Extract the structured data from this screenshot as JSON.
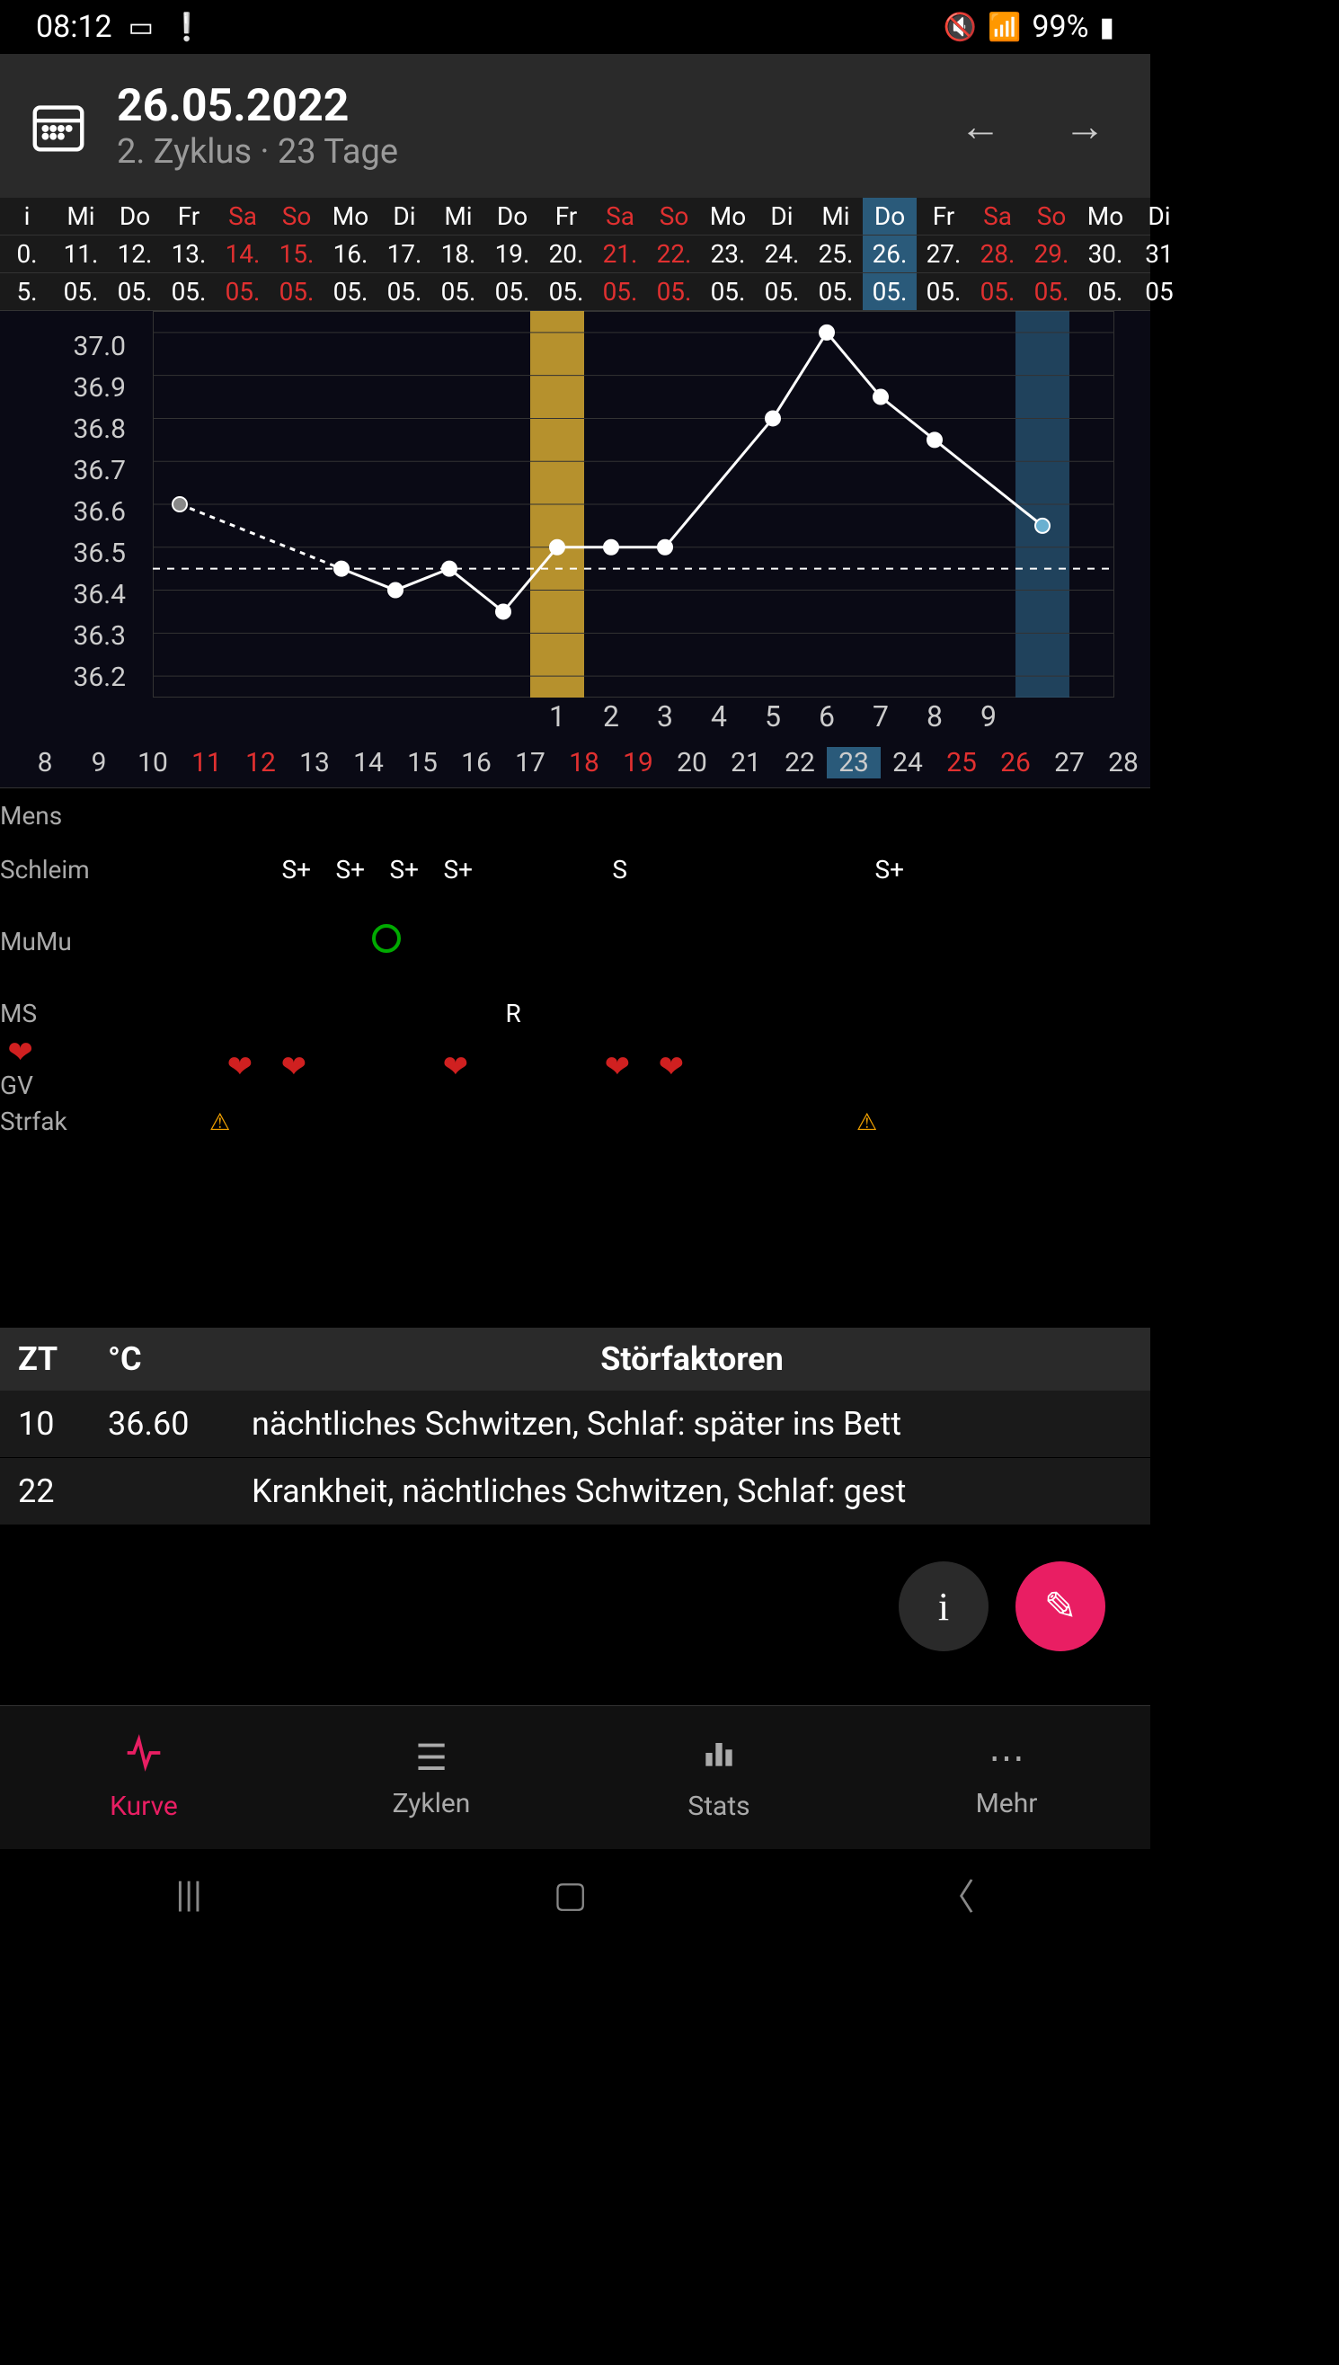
{
  "status": {
    "time": "08:12",
    "battery": "99%"
  },
  "header": {
    "date": "26.05.2022",
    "sub": "2. Zyklus · 23 Tage"
  },
  "colors": {
    "accent": "#e91e63",
    "red_text": "#e03030",
    "blue_bg": "#2a5a7a",
    "ovu_bg": "#c9a030",
    "red_bg": "#9a1818",
    "grid": "#333333",
    "bg": "#000000",
    "panel": "#2a2a2a"
  },
  "cal": {
    "weekdays": [
      "i",
      "Mi",
      "Do",
      "Fr",
      "Sa",
      "So",
      "Mo",
      "Di",
      "Mi",
      "Do",
      "Fr",
      "Sa",
      "So",
      "Mo",
      "Di",
      "Mi",
      "Do",
      "Fr",
      "Sa",
      "So",
      "Mo",
      "Di"
    ],
    "red_wd": [
      4,
      5,
      11,
      12,
      18,
      19
    ],
    "day_nums": [
      "0.",
      "11.",
      "12.",
      "13.",
      "14.",
      "15.",
      "16.",
      "17.",
      "18.",
      "19.",
      "20.",
      "21.",
      "22.",
      "23.",
      "24.",
      "25.",
      "26.",
      "27.",
      "28.",
      "29.",
      "30.",
      "31"
    ],
    "red_dn": [
      4,
      5,
      11,
      12,
      18,
      19
    ],
    "months": [
      "5.",
      "05.",
      "05.",
      "05.",
      "05.",
      "05.",
      "05.",
      "05.",
      "05.",
      "05.",
      "05.",
      "05.",
      "05.",
      "05.",
      "05.",
      "05.",
      "05.",
      "05.",
      "05.",
      "05.",
      "05.",
      "05"
    ],
    "red_mn": [
      4,
      5,
      11,
      12,
      18,
      19
    ],
    "today_idx": 16
  },
  "chart": {
    "y_labels": [
      "37.0",
      "36.9",
      "36.8",
      "36.7",
      "36.6",
      "36.5",
      "36.4",
      "36.3",
      "36.2"
    ],
    "ylim": [
      36.15,
      37.05
    ],
    "coverline": 36.45,
    "ovu_col_idx": 7,
    "today_col_idx": 16,
    "red_col_start": 21,
    "points": [
      {
        "x": 0,
        "y": 36.6,
        "dashed": true,
        "grey": true
      },
      {
        "x": 3,
        "y": 36.45
      },
      {
        "x": 4,
        "y": 36.4
      },
      {
        "x": 5,
        "y": 36.45
      },
      {
        "x": 6,
        "y": 36.35
      },
      {
        "x": 7,
        "y": 36.5
      },
      {
        "x": 8,
        "y": 36.5
      },
      {
        "x": 9,
        "y": 36.5
      },
      {
        "x": 11,
        "y": 36.8
      },
      {
        "x": 12,
        "y": 37.0
      },
      {
        "x": 13,
        "y": 36.85
      },
      {
        "x": 14,
        "y": 36.75
      },
      {
        "x": 16,
        "y": 36.55,
        "blue": true
      }
    ],
    "phase_nums": [
      "",
      "",
      "",
      "",
      "",
      "",
      "",
      "1",
      "2",
      "3",
      "4",
      "5",
      "6",
      "7",
      "8",
      "9",
      "",
      "",
      "",
      "",
      "",
      ""
    ],
    "cycle_days": [
      "8",
      "9",
      "10",
      "11",
      "12",
      "13",
      "14",
      "15",
      "16",
      "17",
      "18",
      "19",
      "20",
      "21",
      "22",
      "23",
      "24",
      "25",
      "26",
      "27",
      "28"
    ],
    "cycle_red": [
      3,
      4,
      10,
      11,
      17,
      18
    ],
    "cycle_today": 15
  },
  "sym": {
    "rows": [
      {
        "label": "Mens",
        "cells": []
      },
      {
        "label": "Schleim",
        "cells": [
          {
            "i": 3,
            "v": "S+"
          },
          {
            "i": 4,
            "v": "S+"
          },
          {
            "i": 5,
            "v": "S+"
          },
          {
            "i": 6,
            "v": "S+"
          },
          {
            "i": 9,
            "v": "S"
          },
          {
            "i": 14,
            "v": "S+"
          }
        ]
      },
      {
        "label": "MuMu",
        "cells": [
          {
            "i": 5,
            "v": "circle"
          }
        ]
      },
      {
        "label": "MS",
        "cells": [
          {
            "i": 8,
            "v": "R"
          }
        ]
      },
      {
        "label": "GV",
        "icon": "heart",
        "cells": [
          {
            "i": 3,
            "v": "heart"
          },
          {
            "i": 4,
            "v": "heart"
          },
          {
            "i": 7,
            "v": "heart"
          },
          {
            "i": 10,
            "v": "heart"
          },
          {
            "i": 11,
            "v": "heart"
          }
        ]
      },
      {
        "label": "Strfak",
        "cells": [
          {
            "i": 2,
            "v": "warn"
          },
          {
            "i": 14,
            "v": "warn"
          }
        ]
      }
    ]
  },
  "table": {
    "head": {
      "zt": "ZT",
      "c": "°C",
      "st": "Störfaktoren"
    },
    "rows": [
      {
        "zt": "10",
        "c": "36.60",
        "st": "nächtliches Schwitzen, Schlaf: später ins Bett"
      },
      {
        "zt": "22",
        "c": "",
        "st": "Krankheit, nächtliches Schwitzen, Schlaf: gest"
      }
    ]
  },
  "fab": {
    "info": "i",
    "edit": "✎"
  },
  "nav": {
    "items": [
      {
        "icon": "pulse",
        "label": "Kurve",
        "active": true
      },
      {
        "icon": "list",
        "label": "Zyklen"
      },
      {
        "icon": "bars",
        "label": "Stats"
      },
      {
        "icon": "dots",
        "label": "Mehr"
      }
    ]
  }
}
